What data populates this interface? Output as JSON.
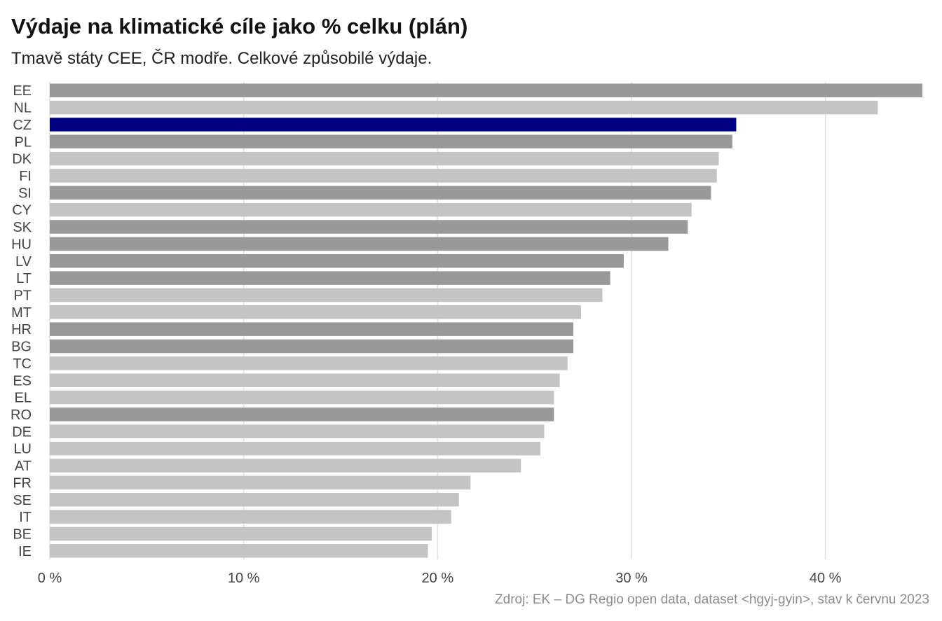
{
  "title": "Výdaje na klimatické cíle jako % celku (plán)",
  "subtitle": "Tmavě státy CEE, ČR modře. Celkové způsobilé výdaje.",
  "source": "Zdroj: EK – DG Regio open data, dataset <hgyj-gyin>, stav k červnu 2023",
  "colors": {
    "cee": "#999999",
    "other": "#c4c4c4",
    "cz": "#000080",
    "grid": "#e0e0e0"
  },
  "chart_data": {
    "type": "bar",
    "orientation": "horizontal",
    "title": "Výdaje na klimatické cíle jako % celku (plán)",
    "xlim": [
      0,
      45
    ],
    "xticks": [
      {
        "value": 0,
        "label": "0 %"
      },
      {
        "value": 10,
        "label": "10 %"
      },
      {
        "value": 20,
        "label": "20 %"
      },
      {
        "value": 30,
        "label": "30 %"
      },
      {
        "value": 40,
        "label": "40 %"
      }
    ],
    "grid": "vertical",
    "categories": [
      "EE",
      "NL",
      "CZ",
      "PL",
      "DK",
      "FI",
      "SI",
      "CY",
      "SK",
      "HU",
      "LV",
      "LT",
      "PT",
      "MT",
      "HR",
      "BG",
      "TC",
      "ES",
      "EL",
      "RO",
      "DE",
      "LU",
      "AT",
      "FR",
      "SE",
      "IT",
      "BE",
      "IE"
    ],
    "values": [
      45.0,
      42.7,
      35.4,
      35.2,
      34.5,
      34.4,
      34.1,
      33.1,
      32.9,
      31.9,
      29.6,
      28.9,
      28.5,
      27.4,
      27.0,
      27.0,
      26.7,
      26.3,
      26.0,
      26.0,
      25.5,
      25.3,
      24.3,
      21.7,
      21.1,
      20.7,
      19.7,
      19.5
    ],
    "groups": [
      "cee",
      "other",
      "cz",
      "cee",
      "other",
      "other",
      "cee",
      "other",
      "cee",
      "cee",
      "cee",
      "cee",
      "other",
      "other",
      "cee",
      "cee",
      "other",
      "other",
      "other",
      "cee",
      "other",
      "other",
      "other",
      "other",
      "other",
      "other",
      "other",
      "other"
    ]
  }
}
